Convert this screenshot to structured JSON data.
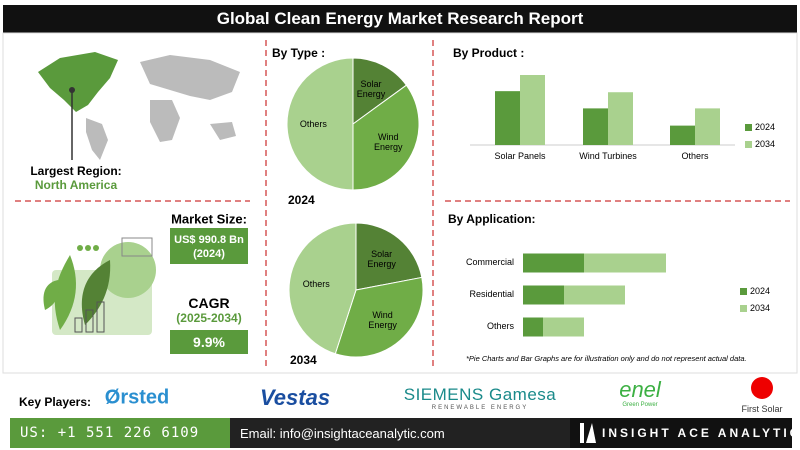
{
  "title": "Global Clean Energy Market Research Report",
  "largest_region": {
    "label": "Largest Region:",
    "value": "North America"
  },
  "market_size": {
    "label": "Market Size:",
    "value": "US$ 990.8 Bn",
    "year": "(2024)"
  },
  "cagr": {
    "label": "CAGR",
    "period": "(2025-2034)",
    "value": "9.9%"
  },
  "chart_data": [
    {
      "type": "pie",
      "title": "By Type :",
      "subtitle": "2024",
      "categories": [
        "Solar Energy",
        "Wind Energy",
        "Others"
      ],
      "values": [
        15,
        35,
        50
      ],
      "colors": [
        "#548235",
        "#70ad47",
        "#a9d18e"
      ]
    },
    {
      "type": "pie",
      "subtitle": "2034",
      "categories": [
        "Solar Energy",
        "Wind Energy",
        "Others"
      ],
      "values": [
        22,
        33,
        45
      ],
      "colors": [
        "#548235",
        "#70ad47",
        "#a9d18e"
      ]
    },
    {
      "type": "bar",
      "title": "By Product :",
      "categories": [
        "Solar Panels",
        "Wind Turbines",
        "Others"
      ],
      "series": [
        {
          "name": "2024",
          "color": "#5a9a3c",
          "values": [
            50,
            34,
            18
          ]
        },
        {
          "name": "2034",
          "color": "#a9d18e",
          "values": [
            65,
            49,
            34
          ]
        }
      ]
    },
    {
      "type": "hbar",
      "title": "By Application:",
      "categories": [
        "Commercial",
        "Residential",
        "Others"
      ],
      "series": [
        {
          "name": "2024",
          "color": "#5a9a3c",
          "values": [
            61,
            41,
            20
          ]
        },
        {
          "name": "2034",
          "color": "#a9d18e",
          "values": [
            82,
            61,
            41
          ]
        }
      ]
    }
  ],
  "note": "*Pie Charts and Bar Graphs are for illustration only and do not represent actual data.",
  "key_players": {
    "label": "Key Players:",
    "companies": [
      {
        "name": "Ørsted"
      },
      {
        "name": "Vestas"
      },
      {
        "name": "SIEMENS Gamesa",
        "tagline": "RENEWABLE ENERGY"
      },
      {
        "name": "enel",
        "tagline": "Green Power"
      },
      {
        "name": "First Solar"
      }
    ]
  },
  "footer": {
    "phone": "US: +1 551 226 6109",
    "email": "Email: info@insightaceanalytic.com",
    "brand": "INSIGHT ACE ANALYTIC"
  }
}
